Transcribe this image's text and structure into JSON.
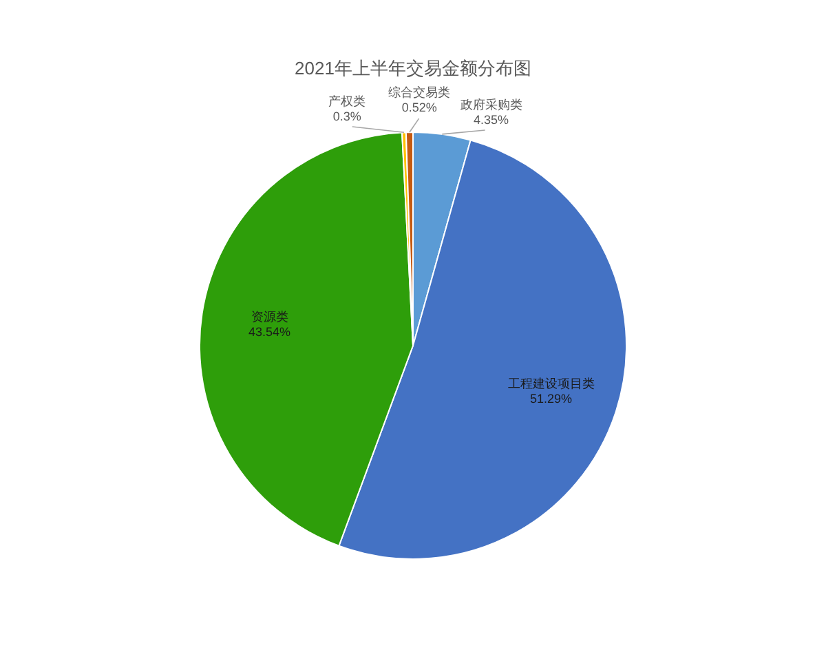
{
  "chart_data": {
    "type": "pie",
    "title": "2021年上半年交易金额分布图",
    "categories": [
      "政府采购类",
      "工程建设项目类",
      "资源类",
      "产权类",
      "综合交易类"
    ],
    "values": [
      4.35,
      51.29,
      43.54,
      0.3,
      0.52
    ],
    "colors": [
      "#5b9bd5",
      "#4472c4",
      "#2e9e0a",
      "#ffc000",
      "#c55a11"
    ],
    "value_labels": [
      "4.35%",
      "51.29%",
      "43.54%",
      "0.3%",
      "0.52%"
    ],
    "legend": false
  }
}
